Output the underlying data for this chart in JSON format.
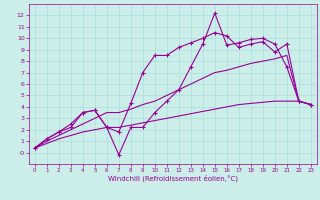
{
  "bg_color": "#cceee8",
  "grid_color": "#aadddd",
  "line_color": "#990099",
  "xlabel": "Windchill (Refroidissement éolien,°C)",
  "ylim": [
    -1,
    13
  ],
  "xlim": [
    -0.5,
    23.5
  ],
  "yticks": [
    0,
    1,
    2,
    3,
    4,
    5,
    6,
    7,
    8,
    9,
    10,
    11,
    12
  ],
  "xticks": [
    0,
    1,
    2,
    3,
    4,
    5,
    6,
    7,
    8,
    9,
    10,
    11,
    12,
    13,
    14,
    15,
    16,
    17,
    18,
    19,
    20,
    21,
    22,
    23
  ],
  "line1_x": [
    0,
    1,
    2,
    3,
    4,
    5,
    6,
    7,
    8,
    9,
    10,
    11,
    12,
    13,
    14,
    15,
    16,
    17,
    18,
    19,
    20,
    21,
    22,
    23
  ],
  "line1_y": [
    0.4,
    1.2,
    1.8,
    2.2,
    3.5,
    3.7,
    2.2,
    -0.2,
    2.2,
    2.2,
    3.5,
    4.5,
    5.5,
    7.5,
    9.5,
    12.2,
    9.4,
    9.6,
    9.9,
    10.0,
    9.5,
    7.5,
    4.5,
    4.2
  ],
  "line2_x": [
    0,
    1,
    2,
    3,
    4,
    5,
    6,
    7,
    8,
    9,
    10,
    11,
    12,
    13,
    14,
    15,
    16,
    17,
    18,
    19,
    20,
    21,
    22,
    23
  ],
  "line2_y": [
    0.4,
    1.2,
    1.8,
    2.5,
    3.5,
    3.7,
    2.2,
    1.8,
    4.3,
    7.0,
    8.5,
    8.5,
    9.2,
    9.6,
    10.0,
    10.5,
    10.2,
    9.2,
    9.5,
    9.7,
    8.8,
    9.5,
    4.5,
    4.2
  ],
  "line3_x": [
    0,
    1,
    2,
    3,
    4,
    5,
    6,
    7,
    8,
    9,
    10,
    11,
    12,
    13,
    14,
    15,
    16,
    17,
    18,
    19,
    20,
    21,
    22,
    23
  ],
  "line3_y": [
    0.4,
    1.0,
    1.5,
    2.0,
    2.5,
    3.0,
    3.5,
    3.5,
    3.8,
    4.2,
    4.5,
    5.0,
    5.5,
    6.0,
    6.5,
    7.0,
    7.2,
    7.5,
    7.8,
    8.0,
    8.2,
    8.5,
    4.5,
    4.2
  ],
  "line4_x": [
    0,
    1,
    2,
    3,
    4,
    5,
    6,
    7,
    8,
    9,
    10,
    11,
    12,
    13,
    14,
    15,
    16,
    17,
    18,
    19,
    20,
    21,
    22,
    23
  ],
  "line4_y": [
    0.4,
    0.8,
    1.2,
    1.5,
    1.8,
    2.0,
    2.2,
    2.2,
    2.4,
    2.6,
    2.8,
    3.0,
    3.2,
    3.4,
    3.6,
    3.8,
    4.0,
    4.2,
    4.3,
    4.4,
    4.5,
    4.5,
    4.5,
    4.2
  ],
  "marker_lines": [
    0,
    1
  ],
  "lw": 0.8,
  "marker_size": 3,
  "xlabel_fontsize": 5,
  "tick_fontsize": 4.5
}
